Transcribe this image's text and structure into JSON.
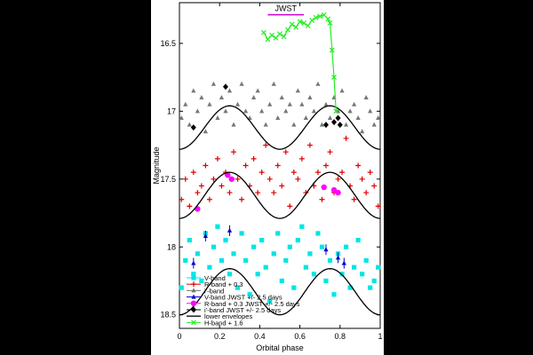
{
  "chart_data": {
    "type": "scatter",
    "xlabel": "Orbital phase",
    "ylabel": "Magnitude",
    "xlim": [
      0,
      1
    ],
    "ylim": [
      16.2,
      18.6
    ],
    "y_inverted": true,
    "xticks": [
      0,
      0.2,
      0.4,
      0.6,
      0.8,
      1
    ],
    "yticks": [
      16.5,
      17,
      17.5,
      18,
      18.5
    ],
    "grid": false,
    "legend_position": "bottom-left",
    "jwst_span": {
      "label": "JWST",
      "x": [
        0.44,
        0.62
      ],
      "y": 16.25
    },
    "series": [
      {
        "name": "V-band",
        "color": "#00e5e5",
        "marker": "square",
        "x": [
          0.01,
          0.03,
          0.05,
          0.07,
          0.09,
          0.11,
          0.13,
          0.15,
          0.17,
          0.19,
          0.21,
          0.23,
          0.25,
          0.27,
          0.29,
          0.31,
          0.33,
          0.35,
          0.37,
          0.39,
          0.41,
          0.43,
          0.45,
          0.47,
          0.49,
          0.51,
          0.53,
          0.55,
          0.57,
          0.59,
          0.61,
          0.63,
          0.65,
          0.67,
          0.69,
          0.71,
          0.73,
          0.75,
          0.77,
          0.79,
          0.81,
          0.83,
          0.85,
          0.87,
          0.89,
          0.91,
          0.93,
          0.95,
          0.97,
          0.99
        ],
        "y": [
          18.3,
          18.1,
          17.95,
          18.2,
          18.05,
          18.25,
          17.9,
          18.15,
          18.0,
          17.85,
          18.1,
          17.95,
          18.2,
          18.05,
          18.3,
          17.9,
          18.1,
          18.35,
          18.0,
          18.2,
          17.95,
          18.15,
          18.4,
          18.05,
          17.9,
          18.25,
          18.1,
          18.0,
          18.3,
          17.95,
          17.85,
          18.15,
          18.05,
          18.2,
          17.9,
          18.0,
          18.25,
          18.1,
          18.35,
          18.05,
          18.2,
          18.0,
          18.3,
          18.15,
          17.95,
          18.2,
          18.1,
          18.3,
          18.25,
          18.15
        ]
      },
      {
        "name": "R-band + 0.3",
        "color": "#dd0000",
        "marker": "plus",
        "x": [
          0.01,
          0.03,
          0.05,
          0.07,
          0.09,
          0.11,
          0.13,
          0.15,
          0.17,
          0.19,
          0.21,
          0.23,
          0.25,
          0.27,
          0.29,
          0.31,
          0.33,
          0.35,
          0.37,
          0.39,
          0.41,
          0.43,
          0.45,
          0.47,
          0.49,
          0.51,
          0.53,
          0.55,
          0.57,
          0.59,
          0.61,
          0.63,
          0.65,
          0.67,
          0.69,
          0.71,
          0.73,
          0.75,
          0.77,
          0.79,
          0.81,
          0.83,
          0.85,
          0.87,
          0.89,
          0.91,
          0.93,
          0.95,
          0.97,
          0.99
        ],
        "y": [
          17.65,
          17.5,
          17.7,
          17.45,
          17.6,
          17.55,
          17.4,
          17.65,
          17.5,
          17.35,
          17.55,
          17.45,
          17.6,
          17.3,
          17.5,
          17.65,
          17.4,
          17.55,
          17.35,
          17.6,
          17.45,
          17.25,
          17.5,
          17.6,
          17.4,
          17.55,
          17.3,
          17.7,
          17.45,
          17.5,
          17.35,
          17.6,
          17.25,
          17.55,
          17.45,
          17.65,
          17.4,
          17.3,
          17.6,
          17.5,
          17.45,
          17.2,
          17.55,
          17.65,
          17.4,
          17.5,
          17.6,
          17.45,
          17.55,
          17.7
        ]
      },
      {
        "name": "i'-band",
        "color": "#777777",
        "marker": "triangle",
        "x": [
          0.01,
          0.03,
          0.05,
          0.07,
          0.09,
          0.11,
          0.13,
          0.15,
          0.17,
          0.19,
          0.21,
          0.23,
          0.25,
          0.27,
          0.29,
          0.31,
          0.33,
          0.35,
          0.37,
          0.39,
          0.41,
          0.43,
          0.45,
          0.47,
          0.49,
          0.51,
          0.53,
          0.55,
          0.57,
          0.59,
          0.61,
          0.63,
          0.65,
          0.67,
          0.69,
          0.71,
          0.73,
          0.75,
          0.77,
          0.79,
          0.81,
          0.83,
          0.85,
          0.87,
          0.89,
          0.91,
          0.93,
          0.95,
          0.97,
          0.99
        ],
        "y": [
          17.05,
          16.95,
          17.1,
          16.85,
          17.0,
          16.9,
          17.15,
          16.95,
          16.8,
          17.05,
          16.9,
          17.0,
          16.85,
          17.1,
          16.95,
          16.8,
          17.0,
          17.05,
          16.9,
          16.85,
          17.0,
          17.1,
          16.95,
          16.8,
          17.05,
          16.9,
          17.0,
          16.95,
          17.1,
          16.85,
          16.95,
          17.05,
          16.9,
          17.0,
          16.8,
          17.1,
          16.95,
          17.05,
          16.9,
          17.0,
          16.85,
          17.1,
          17.0,
          16.95,
          17.05,
          17.15,
          16.9,
          17.0,
          17.1,
          17.05
        ]
      },
      {
        "name": "V-band JWST +/- 2.5 days",
        "color": "#0000cc",
        "marker": "triangle-errbar",
        "x": [
          0.07,
          0.13,
          0.25,
          0.73,
          0.79,
          0.82
        ],
        "y": [
          18.12,
          17.92,
          17.88,
          18.02,
          18.08,
          18.12
        ]
      },
      {
        "name": "R-band + 0.3 JWST +/- 2.5 days",
        "color": "#ff00ff",
        "marker": "circle",
        "x": [
          0.09,
          0.24,
          0.26,
          0.72,
          0.77,
          0.79
        ],
        "y": [
          17.72,
          17.47,
          17.5,
          17.56,
          17.58,
          17.6
        ]
      },
      {
        "name": "i'-band JWST +/- 2.5 days",
        "color": "#000000",
        "marker": "diamond",
        "x": [
          0.07,
          0.23,
          0.73,
          0.77,
          0.79,
          0.8
        ],
        "y": [
          17.12,
          16.82,
          17.1,
          17.08,
          17.05,
          17.1
        ]
      },
      {
        "name": "lower envelopes",
        "color": "#000000",
        "marker": "line",
        "curves": [
          {
            "amplitude": 0.16,
            "mean": 17.12,
            "phase_shift": 0.0
          },
          {
            "amplitude": 0.17,
            "mean": 17.62,
            "phase_shift": 0.0
          },
          {
            "amplitude": 0.17,
            "mean": 18.33,
            "phase_shift": 0.0
          }
        ]
      },
      {
        "name": "H-band + 1.6",
        "color": "#22ee22",
        "marker": "x",
        "x": [
          0.42,
          0.44,
          0.46,
          0.48,
          0.5,
          0.52,
          0.54,
          0.56,
          0.58,
          0.6,
          0.62,
          0.64,
          0.66,
          0.68,
          0.7,
          0.72,
          0.74,
          0.75,
          0.76,
          0.77,
          0.78
        ],
        "y": [
          16.42,
          16.47,
          16.44,
          16.46,
          16.43,
          16.45,
          16.4,
          16.36,
          16.38,
          16.34,
          16.35,
          16.37,
          16.33,
          16.31,
          16.3,
          16.29,
          16.32,
          16.35,
          16.55,
          16.75,
          17.0
        ]
      }
    ]
  }
}
